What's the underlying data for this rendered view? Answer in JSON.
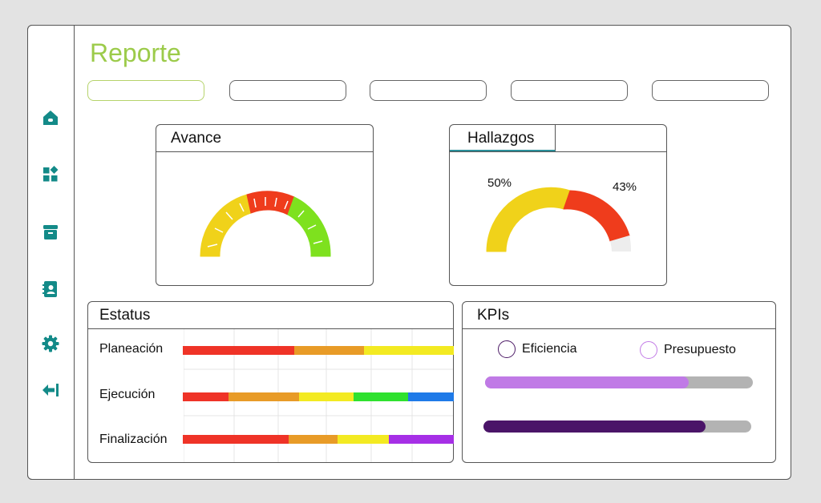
{
  "page": {
    "title": "Reporte"
  },
  "tabs": [
    {
      "label": "",
      "active": true
    },
    {
      "label": "",
      "active": false
    },
    {
      "label": "",
      "active": false
    },
    {
      "label": "",
      "active": false
    },
    {
      "label": "",
      "active": false
    }
  ],
  "sidebar": {
    "icons": [
      "home-icon",
      "dashboard-icon",
      "archive-icon",
      "contacts-icon",
      "settings-icon",
      "logout-icon"
    ],
    "icon_color": "#138a88"
  },
  "avance": {
    "title": "Avance",
    "segments": [
      {
        "color": "#f0d21a"
      },
      {
        "color": "#ef3c1c"
      },
      {
        "color": "#7ee11e"
      }
    ]
  },
  "hallazgos": {
    "title": "Hallazgos",
    "values": [
      {
        "label": "50%",
        "value": 50,
        "color": "#f0d21a"
      },
      {
        "label": "43%",
        "value": 43,
        "color": "#ef3c1c"
      },
      {
        "label": "",
        "value": 7,
        "color": "#ededed"
      }
    ]
  },
  "estatus": {
    "title": "Estatus",
    "rows": [
      {
        "label": "Planeación",
        "segments": [
          {
            "value": 41,
            "color": "#ef3327"
          },
          {
            "value": 26,
            "color": "#e89b27"
          },
          {
            "value": 33,
            "color": "#f3ea22"
          }
        ]
      },
      {
        "label": "Ejecución",
        "segments": [
          {
            "value": 17,
            "color": "#ef3327"
          },
          {
            "value": 26,
            "color": "#e89b27"
          },
          {
            "value": 20,
            "color": "#f3ea22"
          },
          {
            "value": 20,
            "color": "#2fe12f"
          },
          {
            "value": 17,
            "color": "#1f7ae8"
          }
        ]
      },
      {
        "label": "Finalización",
        "segments": [
          {
            "value": 39,
            "color": "#ef3327"
          },
          {
            "value": 18,
            "color": "#e89b27"
          },
          {
            "value": 19,
            "color": "#f3ea22"
          },
          {
            "value": 24,
            "color": "#a62fe6"
          }
        ]
      }
    ]
  },
  "kpis": {
    "title": "KPIs",
    "legend": [
      {
        "label": "Eficiencia",
        "color": "#4c1a66"
      },
      {
        "label": "Presupuesto",
        "color": "#c27ae6"
      }
    ],
    "bars": [
      {
        "value": 76,
        "color": "#c07ae6"
      },
      {
        "value": 83,
        "color": "#4a1468"
      }
    ]
  }
}
